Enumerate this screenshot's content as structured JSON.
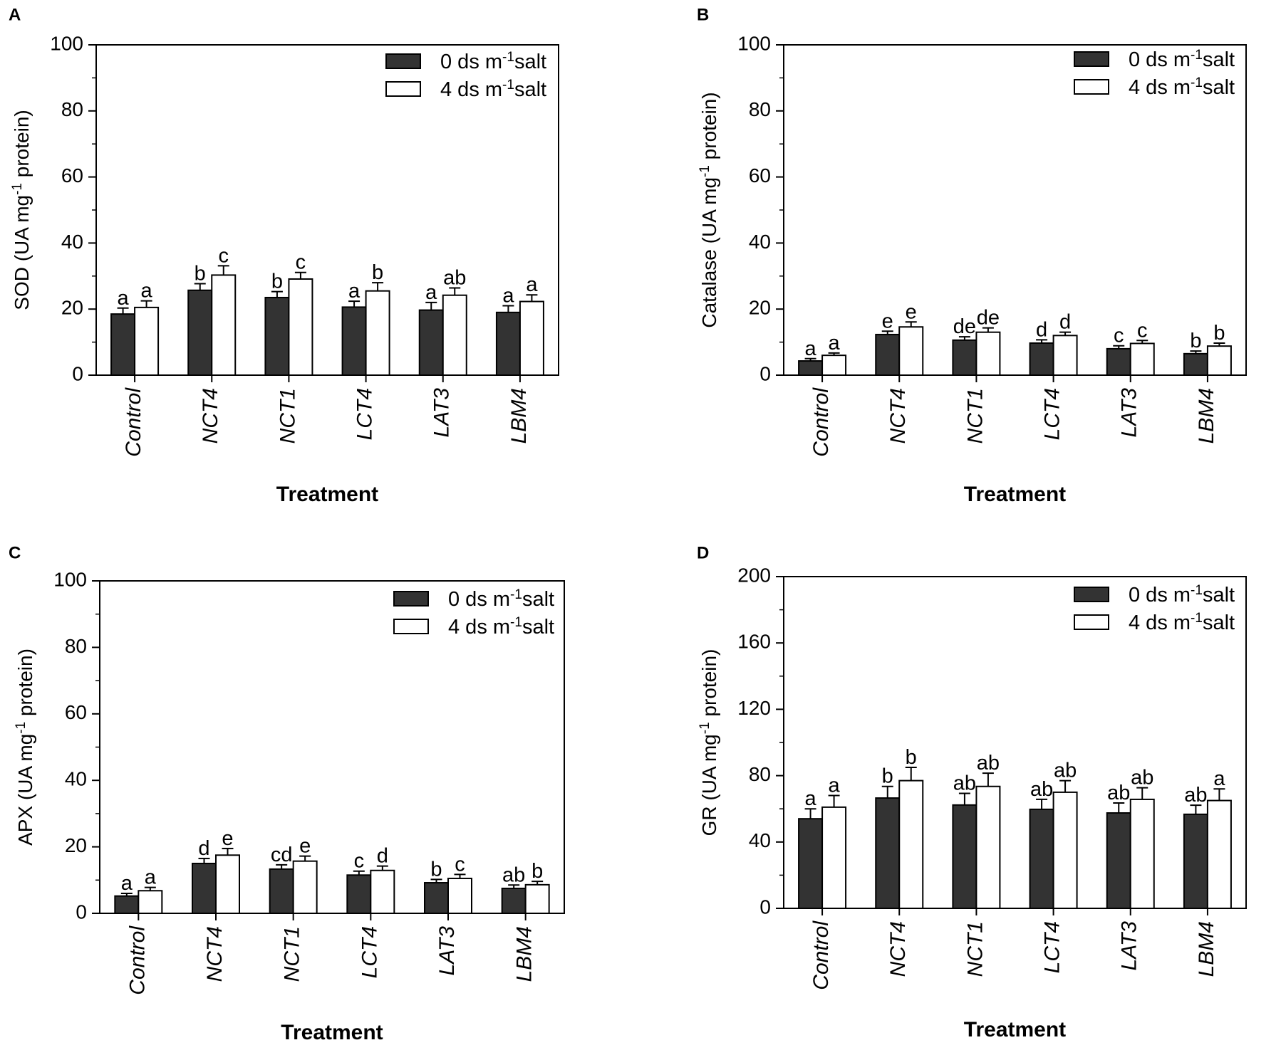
{
  "legend": {
    "colors": {
      "salt0": "#333333",
      "salt4": "#ffffff"
    },
    "items": [
      {
        "prefix": "0 ds m",
        "sup": "-1",
        "suffix": "salt"
      },
      {
        "prefix": "4 ds m",
        "sup": "-1",
        "suffix": "salt"
      }
    ]
  },
  "chart_data": [
    {
      "panel": "A",
      "type": "bar",
      "title": "",
      "xlabel": "Treatment",
      "ylabel": {
        "pre": "SOD (UA mg",
        "sup": "-1",
        "post": " protein)"
      },
      "ylim": [
        0,
        100
      ],
      "ticks": [
        "0",
        "20",
        "40",
        "60",
        "80",
        "100"
      ],
      "categories": [
        "Control",
        "NCT4",
        "NCT1",
        "LCT4",
        "LAT3",
        "LBM4"
      ],
      "series": [
        {
          "name": "0 ds m-1 salt",
          "values": [
            18.5,
            25.7,
            23.5,
            20.6,
            19.7,
            19.0
          ],
          "errors": [
            1.8,
            2.0,
            1.8,
            1.8,
            2.3,
            2.0
          ],
          "letters": [
            "a",
            "b",
            "b",
            "a",
            "a",
            "a"
          ]
        },
        {
          "name": "4 ds m-1 salt",
          "values": [
            20.5,
            30.3,
            29.1,
            25.5,
            24.2,
            22.3
          ],
          "errors": [
            2.0,
            2.8,
            2.0,
            2.5,
            2.2,
            2.0
          ],
          "letters": [
            "a",
            "c",
            "c",
            "b",
            "ab",
            "a"
          ]
        }
      ]
    },
    {
      "panel": "B",
      "type": "bar",
      "title": "",
      "xlabel": "Treatment",
      "ylabel": {
        "pre": "Catalase (UA mg",
        "sup": "-1",
        "post": " protein)"
      },
      "ylim": [
        0,
        100
      ],
      "ticks": [
        "0",
        "20",
        "40",
        "60",
        "80",
        "100"
      ],
      "categories": [
        "Control",
        "NCT4",
        "NCT1",
        "LCT4",
        "LAT3",
        "LBM4"
      ],
      "series": [
        {
          "name": "0 ds m-1 salt",
          "values": [
            4.3,
            12.3,
            10.6,
            9.7,
            8.0,
            6.5
          ],
          "errors": [
            0.7,
            1.0,
            1.0,
            1.0,
            0.9,
            0.8
          ],
          "letters": [
            "a",
            "e",
            "de",
            "d",
            "c",
            "b"
          ]
        },
        {
          "name": "4 ds m-1 salt",
          "values": [
            6.0,
            14.6,
            13.0,
            12.0,
            9.6,
            8.8
          ],
          "errors": [
            0.7,
            1.5,
            1.3,
            1.0,
            0.9,
            0.9
          ],
          "letters": [
            "a",
            "e",
            "de",
            "d",
            "c",
            "b"
          ]
        }
      ]
    },
    {
      "panel": "C",
      "type": "bar",
      "title": "",
      "xlabel": "Treatment",
      "ylabel": {
        "pre": "APX (UA mg",
        "sup": "-1",
        "post": " protein)"
      },
      "ylim": [
        0,
        100
      ],
      "ticks": [
        "0",
        "20",
        "40",
        "60",
        "80",
        "100"
      ],
      "categories": [
        "Control",
        "NCT4",
        "NCT1",
        "LCT4",
        "LAT3",
        "LBM4"
      ],
      "series": [
        {
          "name": "0 ds m-1 salt",
          "values": [
            5.2,
            15.0,
            13.3,
            11.5,
            9.2,
            7.5
          ],
          "errors": [
            0.8,
            1.5,
            1.3,
            1.2,
            1.0,
            1.0
          ],
          "letters": [
            "a",
            "d",
            "cd",
            "c",
            "b",
            "ab"
          ]
        },
        {
          "name": "4 ds m-1 salt",
          "values": [
            6.8,
            17.5,
            15.7,
            12.9,
            10.5,
            8.6
          ],
          "errors": [
            1.0,
            2.0,
            1.5,
            1.3,
            1.2,
            1.0
          ],
          "letters": [
            "a",
            "e",
            "e",
            "d",
            "c",
            "b"
          ]
        }
      ]
    },
    {
      "panel": "D",
      "type": "bar",
      "title": "",
      "xlabel": "Treatment",
      "ylabel": {
        "pre": "GR (UA mg",
        "sup": "-1",
        "post": " protein)"
      },
      "ylim": [
        0,
        200
      ],
      "ticks": [
        "0",
        "40",
        "80",
        "120",
        "160",
        "200"
      ],
      "categories": [
        "Control",
        "NCT4",
        "NCT1",
        "LCT4",
        "LAT3",
        "LBM4"
      ],
      "series": [
        {
          "name": "0 ds m-1 salt",
          "values": [
            54.0,
            66.5,
            62.3,
            59.7,
            57.5,
            56.7
          ],
          "errors": [
            6.0,
            7.0,
            7.0,
            6.0,
            6.0,
            5.5
          ],
          "letters": [
            "a",
            "b",
            "ab",
            "ab",
            "ab",
            "ab"
          ]
        },
        {
          "name": "4 ds m-1 salt",
          "values": [
            61.0,
            77.0,
            73.5,
            70.0,
            65.7,
            65.0
          ],
          "errors": [
            7.0,
            8.0,
            8.0,
            7.0,
            7.0,
            7.0
          ],
          "letters": [
            "a",
            "b",
            "ab",
            "ab",
            "ab",
            "a"
          ]
        }
      ]
    }
  ]
}
